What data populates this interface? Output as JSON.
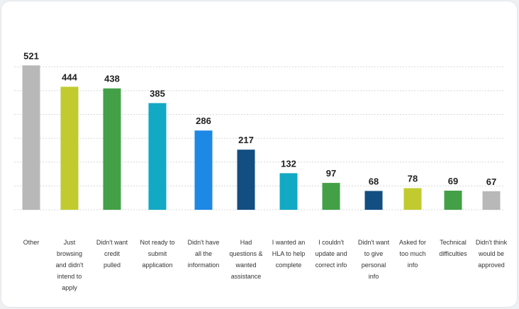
{
  "chart_data": {
    "type": "bar",
    "title": "",
    "xlabel": "",
    "ylabel": "",
    "ylim": [
      0,
      600
    ],
    "grid": true,
    "categories": [
      "Other",
      "Just browsing and didn't intend to apply",
      "Didn't want credit pulled",
      "Not ready to submit application",
      "Didn't have all the information",
      "Had questions & wanted assistance",
      "I wanted an HLA to help complete",
      "I couldn't update and correct info",
      "Didn't want to give personal info",
      "Asked for too much info",
      "Technical difficulties",
      "Didn't think would be approved"
    ],
    "category_lines": [
      [
        "Other"
      ],
      [
        "Just",
        "browsing",
        "and didn't",
        "intend to",
        "apply"
      ],
      [
        "Didn't want",
        "credit",
        "pulled"
      ],
      [
        "Not ready to",
        "submit",
        "application"
      ],
      [
        "Didn't have",
        "all the",
        "information"
      ],
      [
        "Had",
        "questions &",
        "wanted",
        "assistance"
      ],
      [
        "I wanted an",
        "HLA to help",
        "complete"
      ],
      [
        "I couldn't",
        "update and",
        "correct info"
      ],
      [
        "Didn't want",
        "to give",
        "personal",
        "info"
      ],
      [
        "Asked for",
        "too much",
        "info"
      ],
      [
        "Technical",
        "difficulties"
      ],
      [
        "Didn't think",
        "would be",
        "approved"
      ]
    ],
    "values": [
      521,
      444,
      438,
      385,
      286,
      217,
      132,
      97,
      68,
      78,
      69,
      67
    ],
    "colors": [
      "#b8b8b8",
      "#c1cb2f",
      "#43a047",
      "#12a9c4",
      "#1e88e5",
      "#124e82",
      "#12a9c4",
      "#43a047",
      "#124e82",
      "#c1cb2f",
      "#43a047",
      "#b8b8b8"
    ]
  }
}
